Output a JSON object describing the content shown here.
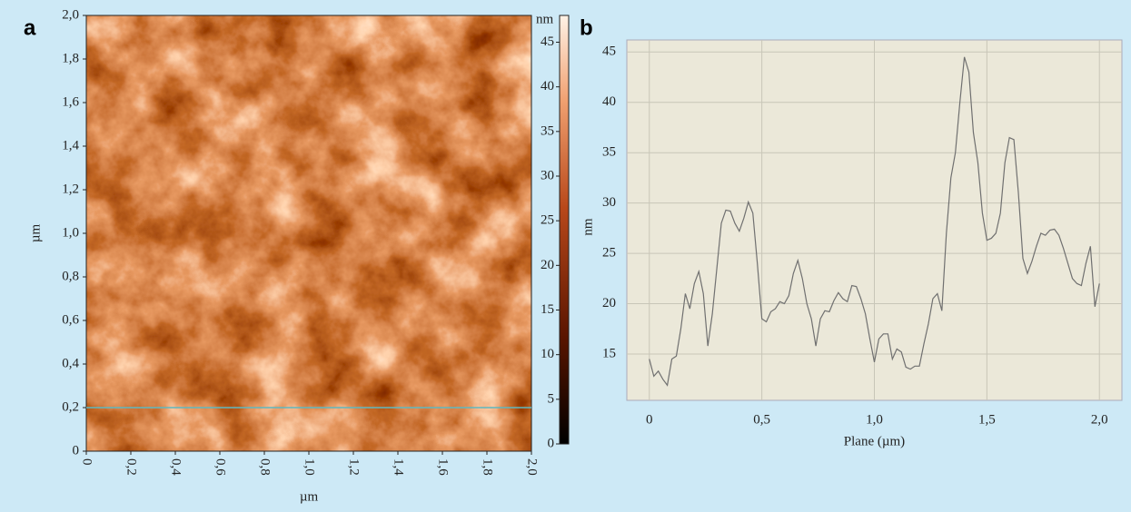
{
  "chart_data": [
    {
      "type": "image",
      "panel_label": "a",
      "x_label": "µm",
      "y_label": "µm",
      "xlim": [
        0,
        2
      ],
      "ylim": [
        0,
        2
      ],
      "xticks": [
        0,
        {
          "value": 0.2,
          "label": "0,2"
        },
        {
          "value": 0.4,
          "label": "0,4"
        },
        {
          "value": 0.6,
          "label": "0,6"
        },
        {
          "value": 0.8,
          "label": "0,8"
        },
        {
          "value": 1,
          "label": "1,0"
        },
        {
          "value": 1.2,
          "label": "1,2"
        },
        {
          "value": 1.4,
          "label": "1,4"
        },
        {
          "value": 1.6,
          "label": "1,6"
        },
        {
          "value": 1.8,
          "label": "1,8"
        },
        {
          "value": 2,
          "label": "2,0"
        }
      ],
      "yticks": [
        0,
        {
          "value": 0.2,
          "label": "0,2"
        },
        {
          "value": 0.4,
          "label": "0,4"
        },
        {
          "value": 0.6,
          "label": "0,6"
        },
        {
          "value": 0.8,
          "label": "0,8"
        },
        {
          "value": 1,
          "label": "1,0"
        },
        {
          "value": 1.2,
          "label": "1,2"
        },
        {
          "value": 1.4,
          "label": "1,4"
        },
        {
          "value": 1.6,
          "label": "1,6"
        },
        {
          "value": 1.8,
          "label": "1,8"
        },
        {
          "value": 2,
          "label": "2,0"
        }
      ],
      "profile_y": 0.2,
      "profile_color": "#5fb8c0",
      "colorbar": {
        "title": "nm",
        "lim": [
          0,
          48
        ],
        "ticks": [
          0,
          5,
          10,
          15,
          20,
          25,
          30,
          35,
          40,
          45
        ]
      }
    },
    {
      "type": "line",
      "panel_label": "b",
      "x_label": "Plane (µm)",
      "y_label": "nm",
      "xlim": [
        -0.1,
        2.1
      ],
      "ylim": [
        10.4,
        46.2
      ],
      "xticks": [
        0,
        {
          "value": 0.5,
          "label": "0,5"
        },
        {
          "value": 1,
          "label": "1,0"
        },
        {
          "value": 1.5,
          "label": "1,5"
        },
        {
          "value": 2,
          "label": "2,0"
        }
      ],
      "yticks": [
        15,
        20,
        25,
        30,
        35,
        40,
        45
      ],
      "grid": true,
      "x": [
        0,
        0.02,
        0.04,
        0.06,
        0.08,
        0.1,
        0.12,
        0.14,
        0.16,
        0.18,
        0.2,
        0.22,
        0.24,
        0.26,
        0.28,
        0.3,
        0.32,
        0.34,
        0.36,
        0.38,
        0.4,
        0.42,
        0.44,
        0.46,
        0.48,
        0.5,
        0.52,
        0.54,
        0.56,
        0.58,
        0.6,
        0.62,
        0.64,
        0.66,
        0.68,
        0.7,
        0.72,
        0.74,
        0.76,
        0.78,
        0.8,
        0.82,
        0.84,
        0.86,
        0.88,
        0.9,
        0.92,
        0.94,
        0.96,
        0.98,
        1,
        1.02,
        1.04,
        1.06,
        1.08,
        1.1,
        1.12,
        1.14,
        1.16,
        1.18,
        1.2,
        1.22,
        1.24,
        1.26,
        1.28,
        1.3,
        1.32,
        1.34,
        1.36,
        1.38,
        1.4,
        1.42,
        1.44,
        1.46,
        1.48,
        1.5,
        1.52,
        1.54,
        1.56,
        1.58,
        1.6,
        1.62,
        1.64,
        1.66,
        1.68,
        1.7,
        1.72,
        1.74,
        1.76,
        1.78,
        1.8,
        1.82,
        1.84,
        1.86,
        1.88,
        1.9,
        1.92,
        1.94,
        1.96,
        1.98,
        2
      ],
      "series": [
        {
          "color": "#707070",
          "values": [
            14.5,
            12.8,
            13.3,
            12.5,
            11.9,
            14.5,
            14.8,
            17.5,
            21,
            19.5,
            22,
            23.2,
            21,
            15.8,
            19,
            23.5,
            28,
            29.3,
            29.2,
            28,
            27.2,
            28.5,
            30.1,
            29,
            24,
            18.5,
            18.2,
            19.2,
            19.5,
            20.2,
            20,
            20.8,
            23,
            24.3,
            22.5,
            20,
            18.5,
            15.8,
            18.5,
            19.3,
            19.2,
            20.3,
            21.1,
            20.5,
            20.2,
            21.8,
            21.7,
            20.5,
            19,
            16.5,
            14.2,
            16.5,
            17,
            17,
            14.5,
            15.5,
            15.2,
            13.7,
            13.5,
            13.8,
            13.8,
            16,
            18,
            20.5,
            21,
            19.3,
            27,
            32.5,
            35,
            40,
            44.5,
            43,
            37,
            34,
            29,
            26.3,
            26.5,
            27,
            29,
            34,
            36.5,
            36.3,
            31,
            24.5,
            23,
            24.2,
            25.7,
            27,
            26.8,
            27.3,
            27.4,
            26.8,
            25.5,
            24,
            22.5,
            22,
            21.8,
            24,
            25.7,
            19.7,
            22
          ]
        }
      ]
    }
  ]
}
